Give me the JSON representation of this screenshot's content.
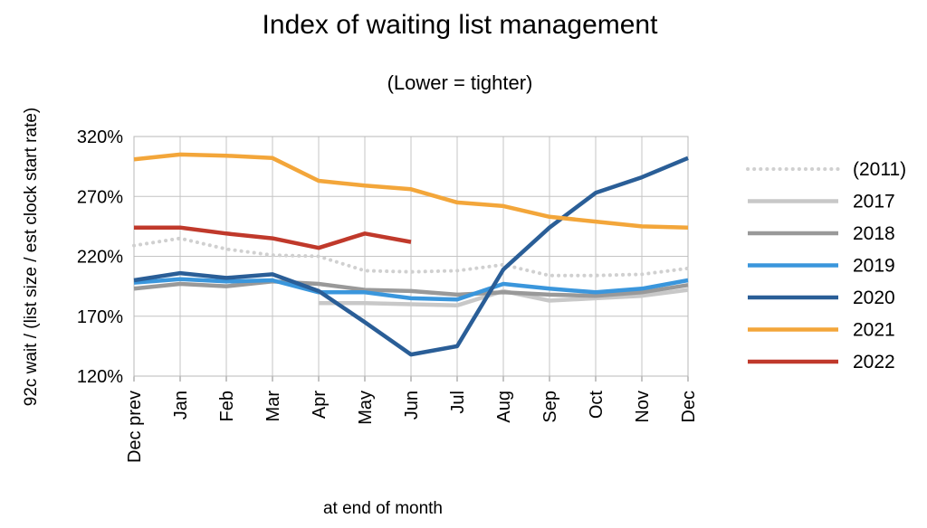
{
  "chart_data": {
    "type": "line",
    "title": "Index of waiting list management",
    "subtitle": "(Lower = tighter)",
    "ylabel": "92c wait / (list size / est clock start rate)",
    "xlabel": "at end of month",
    "ylim": [
      120,
      320
    ],
    "yticks": [
      120,
      170,
      220,
      270,
      320
    ],
    "ytick_suffix": "%",
    "categories": [
      "Dec prev",
      "Jan",
      "Feb",
      "Mar",
      "Apr",
      "May",
      "Jun",
      "Jul",
      "Aug",
      "Sep",
      "Oct",
      "Nov",
      "Dec"
    ],
    "grid": true,
    "legend_position": "right",
    "series": [
      {
        "name": "(2011)",
        "color": "#d0d0d0",
        "style": "dotted",
        "values": [
          229,
          235,
          226,
          221,
          220,
          208,
          207,
          208,
          213,
          204,
          204,
          205,
          210
        ]
      },
      {
        "name": "2017",
        "color": "#c8c8c8",
        "style": "solid",
        "values": [
          null,
          null,
          null,
          null,
          181,
          181,
          180,
          179,
          191,
          183,
          185,
          187,
          192
        ]
      },
      {
        "name": "2018",
        "color": "#999999",
        "style": "solid",
        "values": [
          193,
          197,
          195,
          199,
          197,
          192,
          191,
          188,
          190,
          188,
          187,
          190,
          196
        ]
      },
      {
        "name": "2019",
        "color": "#3a96dc",
        "style": "solid",
        "values": [
          198,
          201,
          199,
          200,
          190,
          190,
          185,
          184,
          197,
          193,
          190,
          193,
          200
        ]
      },
      {
        "name": "2020",
        "color": "#2a5e97",
        "style": "solid",
        "values": [
          200,
          206,
          202,
          205,
          191,
          165,
          138,
          145,
          209,
          244,
          273,
          286,
          302
        ]
      },
      {
        "name": "2021",
        "color": "#f3a63a",
        "style": "solid",
        "values": [
          301,
          305,
          304,
          302,
          283,
          279,
          276,
          265,
          262,
          253,
          249,
          245,
          244
        ]
      },
      {
        "name": "2022",
        "color": "#c0392b",
        "style": "solid",
        "values": [
          244,
          244,
          239,
          235,
          227,
          239,
          232,
          null,
          null,
          null,
          null,
          null,
          null
        ]
      }
    ]
  }
}
